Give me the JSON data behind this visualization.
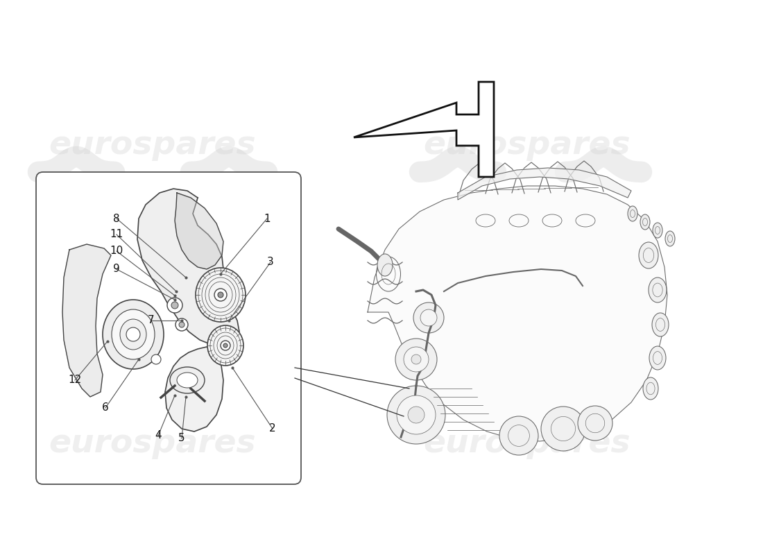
{
  "background_color": "#ffffff",
  "watermark_text": "eurospares",
  "watermark_color": "#cccccc",
  "watermark_alpha": 0.3,
  "arrow_color": "#111111",
  "line_color": "#444444",
  "box_color": "#555555",
  "label_color": "#111111",
  "label_fontsize": 11,
  "figsize": [
    11.0,
    8.0
  ],
  "dpi": 100
}
